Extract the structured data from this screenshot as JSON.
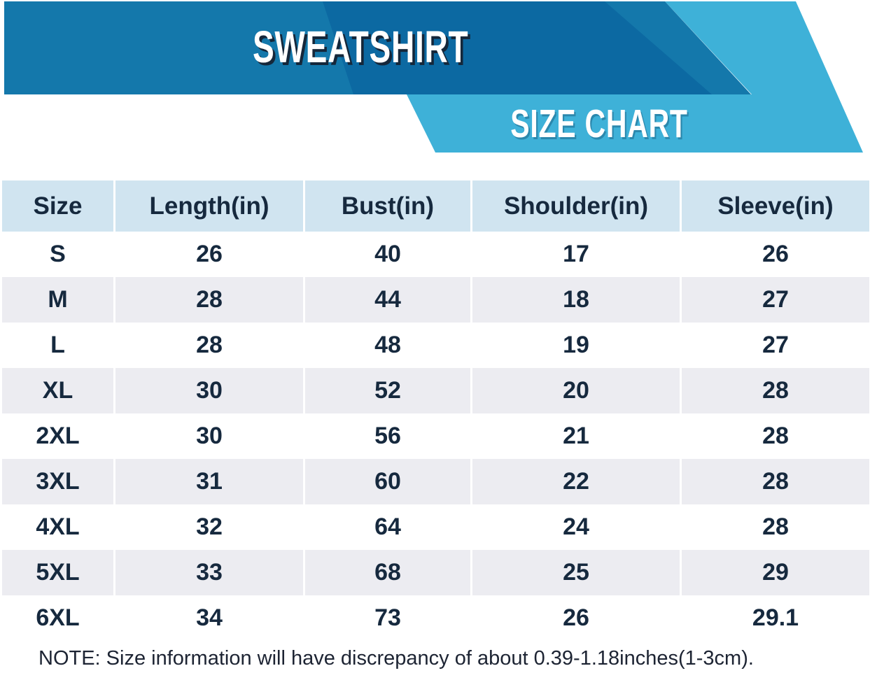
{
  "banner": {
    "product_title": "SWEATSHIRT",
    "chart_title": "SIZE CHART"
  },
  "colors": {
    "banner_medium_blue": "#1478ab",
    "banner_dark_blue": "#0c69a2",
    "banner_light_blue": "#3eb1d8",
    "title_shadow_navy": "#15273a",
    "header_bg": "#d0e4f0",
    "row_shade_bg": "#ececf1",
    "table_text_navy": "#16293e"
  },
  "chart_data": {
    "type": "table",
    "title": "SWEATSHIRT",
    "subtitle": "SIZE CHART",
    "columns": [
      "Size",
      "Length(in)",
      "Bust(in)",
      "Shoulder(in)",
      "Sleeve(in)"
    ],
    "rows": [
      [
        "S",
        "26",
        "40",
        "17",
        "26"
      ],
      [
        "M",
        "28",
        "44",
        "18",
        "27"
      ],
      [
        "L",
        "28",
        "48",
        "19",
        "27"
      ],
      [
        "XL",
        "30",
        "52",
        "20",
        "28"
      ],
      [
        "2XL",
        "30",
        "56",
        "21",
        "28"
      ],
      [
        "3XL",
        "31",
        "60",
        "22",
        "28"
      ],
      [
        "4XL",
        "32",
        "64",
        "24",
        "28"
      ],
      [
        "5XL",
        "33",
        "68",
        "25",
        "29"
      ],
      [
        "6XL",
        "34",
        "73",
        "26",
        "29.1"
      ]
    ],
    "note": "NOTE: Size information will have discrepancy of about 0.39-1.18inches(1-3cm)."
  }
}
